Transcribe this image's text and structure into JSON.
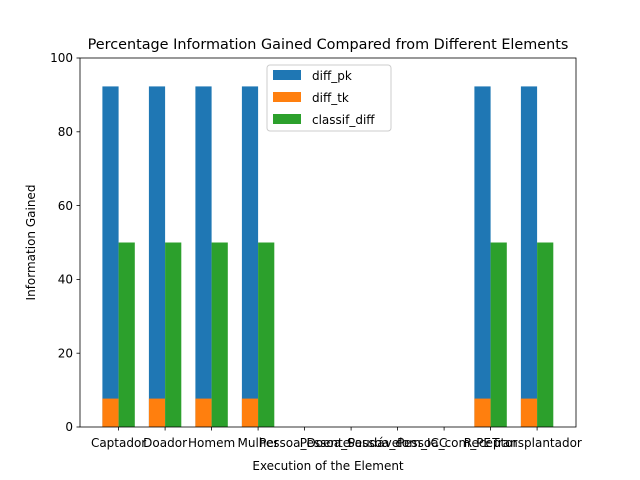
{
  "chart_data": {
    "type": "bar",
    "title": "Percentage Information Gained Compared from Different Elements",
    "xlabel": "Execution of the Element",
    "ylabel": "Information Gained",
    "ylim": [
      0,
      100
    ],
    "yticks": [
      0,
      20,
      40,
      60,
      80,
      100
    ],
    "grid": false,
    "legend_position": "top-center",
    "categories": [
      "Captador",
      "Doador",
      "Homem",
      "Mulher",
      "Pessoa_Doente",
      "Pessoa_Saudável",
      "Pessoa_com_ICC",
      "Pessoa_com_PE",
      "Receptor",
      "Transplantador"
    ],
    "series": [
      {
        "name": "diff_pk",
        "color": "#1f77b4",
        "values": [
          92.3,
          92.3,
          92.3,
          92.3,
          0,
          0,
          0,
          0,
          92.3,
          92.3
        ],
        "base": [
          0,
          0,
          0,
          0,
          0,
          0,
          0,
          0,
          0,
          0
        ],
        "offset": -1
      },
      {
        "name": "diff_tk",
        "color": "#ff7f0e",
        "values": [
          7.7,
          7.7,
          7.7,
          7.7,
          0,
          0,
          0,
          0,
          7.7,
          7.7
        ],
        "base": [
          0,
          0,
          0,
          0,
          0,
          0,
          0,
          0,
          0,
          0
        ],
        "offset": -1
      },
      {
        "name": "classif_diff",
        "color": "#2ca02c",
        "values": [
          50,
          50,
          50,
          50,
          0,
          0,
          0,
          0,
          50,
          50
        ],
        "base": [
          0,
          0,
          0,
          0,
          0,
          0,
          0,
          0,
          0,
          0
        ],
        "offset": 0
      }
    ]
  }
}
